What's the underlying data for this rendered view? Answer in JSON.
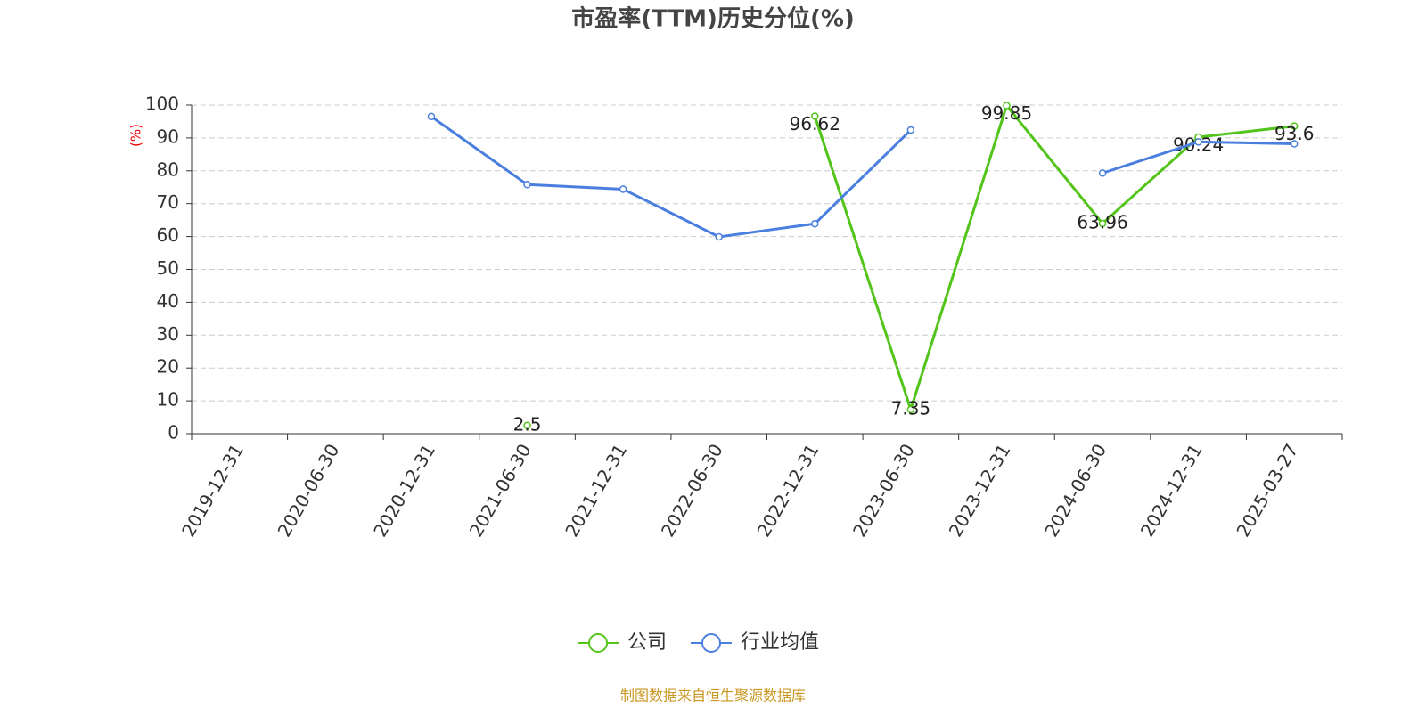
{
  "chart_data": {
    "type": "line",
    "title": "市盈率(TTM)历史分位(%)",
    "y_label": "(%)",
    "categories": [
      "2019-12-31",
      "2020-06-30",
      "2020-12-31",
      "2021-06-30",
      "2021-12-31",
      "2022-06-30",
      "2022-12-31",
      "2023-06-30",
      "2023-12-31",
      "2024-06-30",
      "2024-12-31",
      "2025-03-27"
    ],
    "series": [
      {
        "name": "公司",
        "color": "#52c41a",
        "values": [
          null,
          null,
          null,
          2.5,
          null,
          null,
          96.62,
          7.35,
          99.85,
          63.96,
          90.24,
          93.6
        ],
        "show_labels": true
      },
      {
        "name": "行业均值",
        "color": "#4a7fe0",
        "values": [
          null,
          null,
          96.5,
          75.8,
          74.4,
          59.9,
          63.9,
          92.4,
          null,
          79.3,
          88.8,
          88.2
        ],
        "show_labels": false
      }
    ],
    "ylim": [
      0,
      100
    ],
    "yticks": [
      0,
      10,
      20,
      30,
      40,
      50,
      60,
      70,
      80,
      90,
      100
    ],
    "grid": true,
    "source": "制图数据来自恒生聚源数据库"
  }
}
